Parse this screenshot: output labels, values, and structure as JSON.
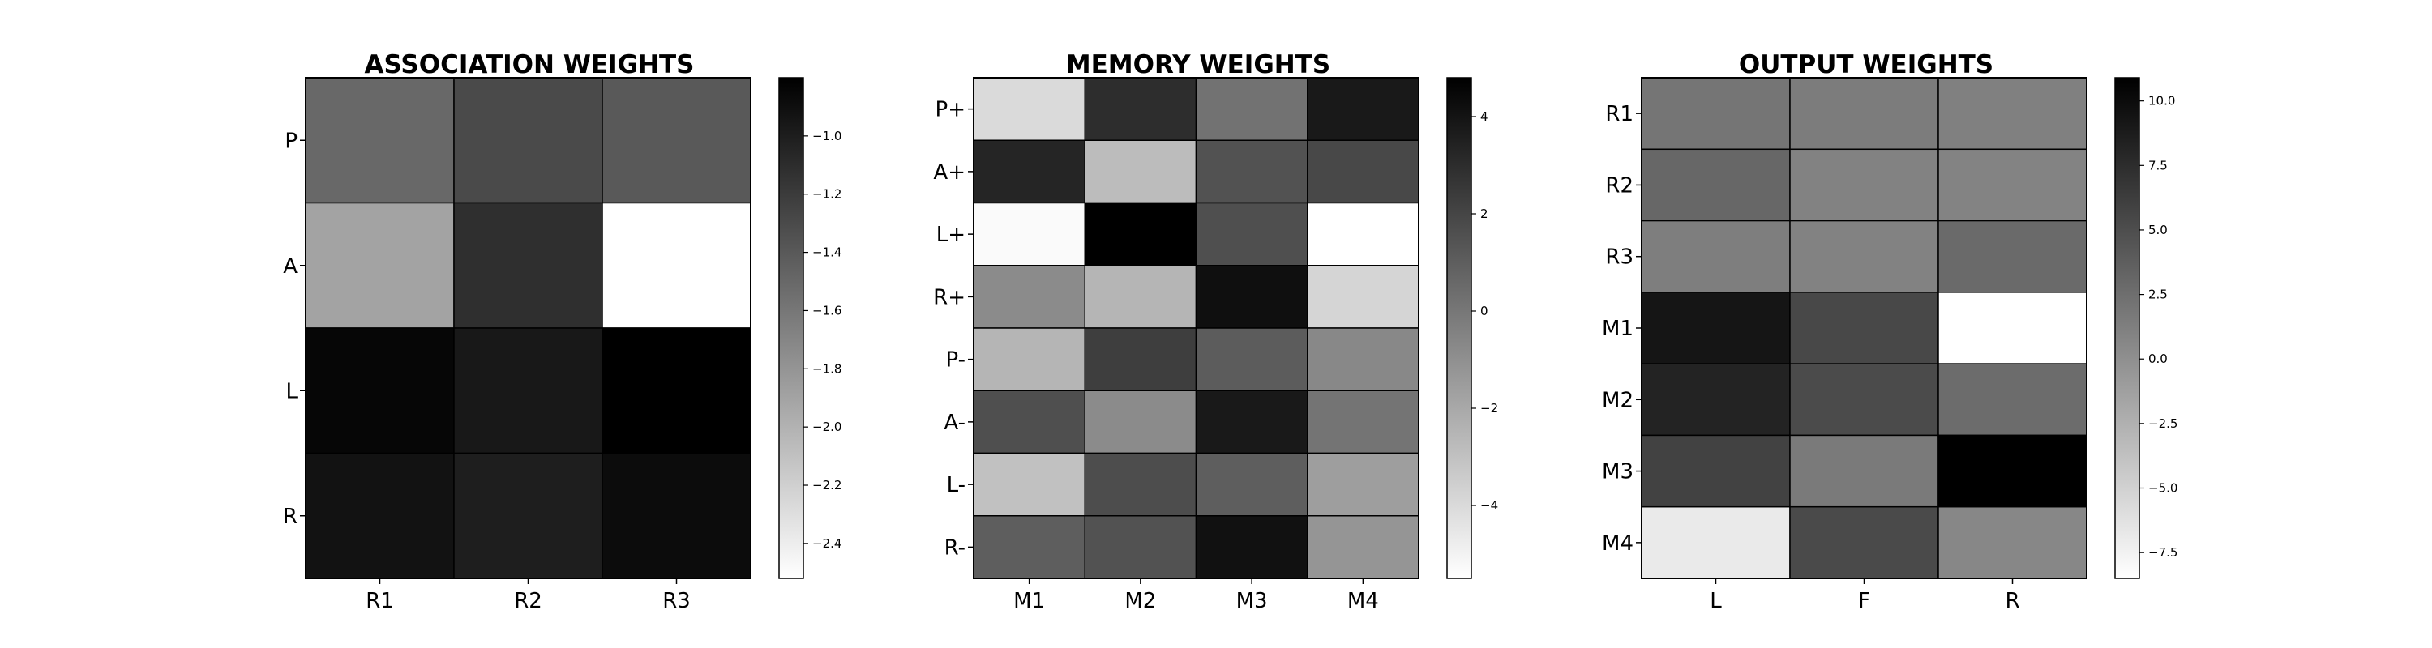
{
  "chart_data": [
    {
      "type": "heatmap",
      "title": "ASSOCIATION WEIGHTS",
      "xlabels": [
        "R1",
        "R2",
        "R3"
      ],
      "ylabels": [
        "P",
        "A",
        "L",
        "R"
      ],
      "values": [
        [
          -1.5,
          -1.3,
          -1.4
        ],
        [
          -1.9,
          -1.12,
          -2.52
        ],
        [
          -0.84,
          -0.96,
          -0.8
        ],
        [
          -0.92,
          -1.0,
          -0.88
        ]
      ],
      "colorbar": {
        "range": [
          -2.52,
          -0.8
        ],
        "ticks": [
          -2.4,
          -2.2,
          -2.0,
          -1.8,
          -1.6,
          -1.4,
          -1.2,
          -1.0
        ],
        "tick_labels": [
          "−2.4",
          "−2.2",
          "−2.0",
          "−1.8",
          "−1.6",
          "−1.4",
          "−1.2",
          "−1.0"
        ]
      },
      "colormap": "gray_r",
      "grid": false
    },
    {
      "type": "heatmap",
      "title": "MEMORY WEIGHTS",
      "xlabels": [
        "M1",
        "M2",
        "M3",
        "M4"
      ],
      "ylabels": [
        "P+",
        "A+",
        "L+",
        "R+",
        "P-",
        "A-",
        "L-",
        "R-"
      ],
      "values": [
        [
          -4.0,
          3.0,
          0.2,
          3.8
        ],
        [
          3.3,
          -2.8,
          1.5,
          1.9
        ],
        [
          -5.3,
          4.8,
          1.6,
          -5.5
        ],
        [
          -0.8,
          -2.5,
          4.2,
          -3.8
        ],
        [
          -2.5,
          2.3,
          1.1,
          -0.7
        ],
        [
          1.6,
          -0.8,
          3.8,
          0.1
        ],
        [
          -3.0,
          1.7,
          1.0,
          -1.6
        ],
        [
          1.0,
          1.5,
          4.1,
          -1.2
        ]
      ],
      "colorbar": {
        "range": [
          -5.5,
          4.8
        ],
        "ticks": [
          -4,
          -2,
          0,
          2,
          4
        ],
        "tick_labels": [
          "−4",
          "−2",
          "0",
          "2",
          "4"
        ]
      },
      "colormap": "gray_r",
      "grid": false
    },
    {
      "type": "heatmap",
      "title": "OUTPUT WEIGHTS",
      "xlabels": [
        "L",
        "F",
        "R"
      ],
      "ylabels": [
        "R1",
        "R2",
        "R3",
        "M1",
        "M2",
        "M3",
        "M4"
      ],
      "values": [
        [
          2.0,
          1.5,
          1.2
        ],
        [
          3.1,
          1.0,
          0.9
        ],
        [
          1.3,
          1.0,
          2.8
        ],
        [
          9.3,
          5.4,
          -8.5
        ],
        [
          8.2,
          5.2,
          2.7
        ],
        [
          5.9,
          1.6,
          10.9
        ],
        [
          -6.9,
          5.3,
          0.6
        ]
      ],
      "colorbar": {
        "range": [
          -8.5,
          10.9
        ],
        "ticks": [
          -7.5,
          -5.0,
          -2.5,
          0.0,
          2.5,
          5.0,
          7.5,
          10.0
        ],
        "tick_labels": [
          "−7.5",
          "−5.0",
          "−2.5",
          "0.0",
          "2.5",
          "5.0",
          "7.5",
          "10.0"
        ]
      },
      "colormap": "gray_r",
      "grid": false
    }
  ]
}
